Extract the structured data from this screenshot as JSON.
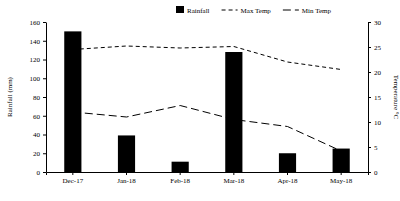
{
  "chart_data": {
    "type": "bar",
    "categories": [
      "Dec-17",
      "Jan-18",
      "Feb-18",
      "Mar-18",
      "Apr-18",
      "May-18"
    ],
    "y_label": "Rainfall (mm)",
    "y2_label": "Temperature °C",
    "ylim": [
      0,
      160
    ],
    "yticks": [
      0,
      20,
      40,
      60,
      80,
      100,
      120,
      140,
      160
    ],
    "y2lim": [
      0,
      30
    ],
    "y2ticks": [
      0,
      5,
      10,
      15,
      20,
      25,
      30
    ],
    "legend": "top",
    "series": [
      {
        "name": "Rainfall",
        "type": "bar",
        "color": "#000000",
        "values": [
          150,
          39,
          11,
          128,
          20,
          25
        ]
      },
      {
        "name": "Max Temp",
        "type": "line",
        "axis": "y2",
        "color": "#000000",
        "line_style": "dashed",
        "values": [
          24.5,
          25.2,
          24.8,
          25.1,
          22,
          20.5
        ]
      },
      {
        "name": "Min Temp",
        "type": "line",
        "axis": "y2",
        "color": "#000000",
        "line_style": "longdash",
        "values": [
          12,
          11,
          13.3,
          10.5,
          9.1,
          4.2
        ]
      }
    ]
  }
}
